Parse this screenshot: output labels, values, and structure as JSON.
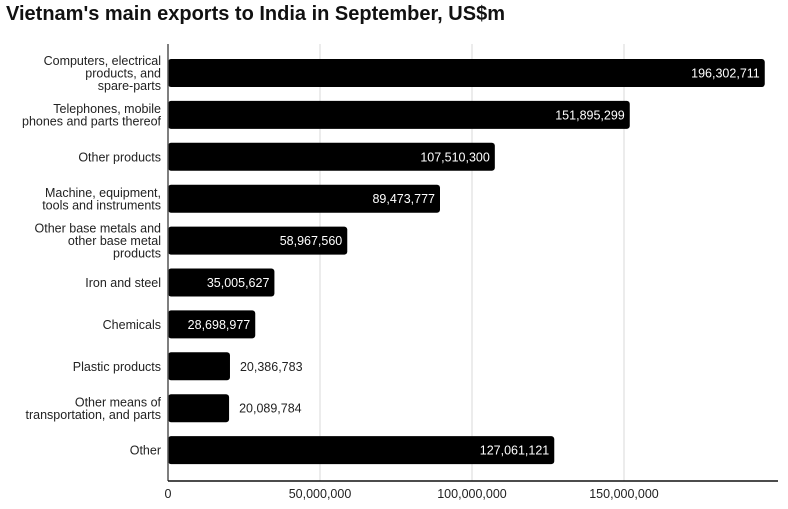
{
  "chart_data": {
    "type": "bar",
    "orientation": "horizontal",
    "title": "Vietnam's main exports to India in September, US$m",
    "xlabel": "",
    "ylabel": "",
    "categories": [
      "Computers, electrical products, and spare-parts",
      "Telephones, mobile phones and parts thereof",
      "Other products",
      "Machine, equipment, tools and instruments",
      "Other base metals and other base metal products",
      "Iron and steel",
      "Chemicals",
      "Plastic products",
      "Other means of transportation, and parts",
      "Other"
    ],
    "category_lines": [
      [
        "Computers, electrical",
        "products, and",
        "spare-parts"
      ],
      [
        "Telephones, mobile",
        "phones and parts thereof"
      ],
      [
        "Other products"
      ],
      [
        "Machine, equipment,",
        "tools and instruments"
      ],
      [
        "Other base metals and",
        "other base metal",
        "products"
      ],
      [
        "Iron and steel"
      ],
      [
        "Chemicals"
      ],
      [
        "Plastic products"
      ],
      [
        "Other means of",
        "transportation, and parts"
      ],
      [
        "Other"
      ]
    ],
    "values": [
      196302711,
      151895299,
      107510300,
      89473777,
      58967560,
      35005627,
      28698977,
      20386783,
      20089784,
      127061121
    ],
    "data_labels": [
      "196,302,711",
      "151,895,299",
      "107,510,300",
      "89,473,777",
      "58,967,560",
      "35,005,627",
      "28,698,977",
      "20,386,783",
      "20,089,784",
      "127,061,121"
    ],
    "xlim": [
      0,
      200000000
    ],
    "xticks": [
      0,
      50000000,
      100000000,
      150000000
    ],
    "xtick_labels": [
      "0",
      "50,000,000",
      "100,000,000",
      "150,000,000"
    ],
    "grid": true,
    "legend": "none",
    "bar_color": "#000000",
    "grid_color": "#d9d9d9"
  }
}
